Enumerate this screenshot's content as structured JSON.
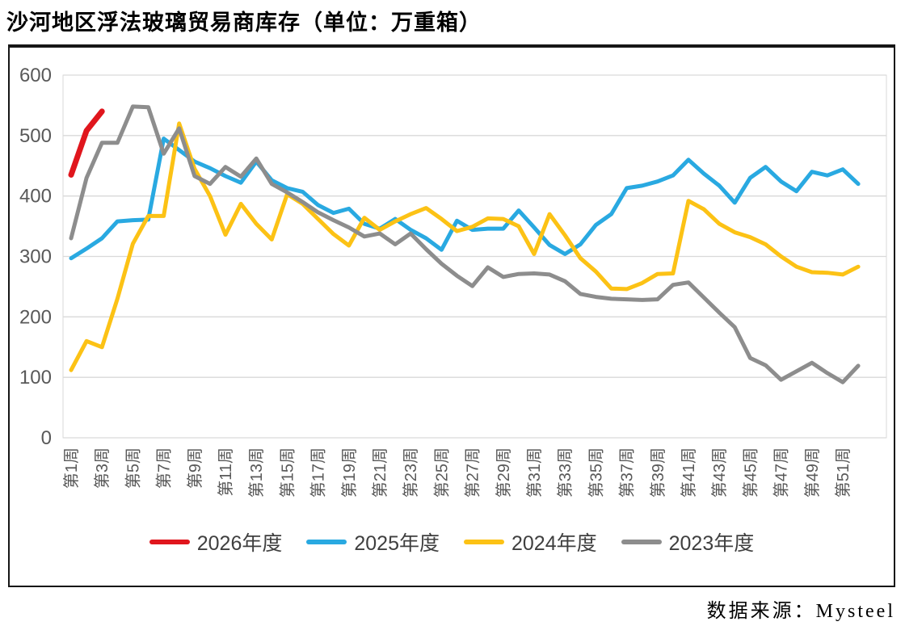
{
  "page": {
    "title": "沙河地区浮法玻璃贸易商库存（单位：万重箱）",
    "source": "数据来源：Mysteel"
  },
  "colors": {
    "gridline": "#d9d9d9",
    "plot_border": "#d9d9d9",
    "axis_text": "#595959",
    "box_border": "#161616"
  },
  "chart_data": {
    "type": "line",
    "title": "沙河地区浮法玻璃贸易商库存",
    "unit": "万重箱",
    "grid": "horizontal",
    "legend_position": "bottom",
    "weeks": 52,
    "y_axis": {
      "range": [
        0,
        600
      ],
      "ticks": [
        0,
        100,
        200,
        300,
        400,
        500,
        600
      ]
    },
    "x_axis": {
      "tick_labels": [
        "第1周",
        "第3周",
        "第5周",
        "第7周",
        "第9周",
        "第11周",
        "第13周",
        "第15周",
        "第17周",
        "第19周",
        "第21周",
        "第23周",
        "第25周",
        "第27周",
        "第29周",
        "第31周",
        "第33周",
        "第35周",
        "第37周",
        "第39周",
        "第41周",
        "第43周",
        "第45周",
        "第47周",
        "第49周",
        "第51周"
      ]
    },
    "series": [
      {
        "name": "2026年度",
        "color": "#e0161d",
        "stroke_width": 7,
        "values": [
          435,
          508,
          540
        ]
      },
      {
        "name": "2025年度",
        "color": "#29a9e1",
        "stroke_width": 5,
        "values": [
          297,
          313,
          330,
          358,
          360,
          361,
          495,
          476,
          457,
          446,
          433,
          422,
          457,
          426,
          413,
          407,
          385,
          372,
          379,
          354,
          346,
          362,
          344,
          330,
          311,
          359,
          344,
          346,
          346,
          376,
          348,
          319,
          304,
          320,
          352,
          370,
          413,
          417,
          424,
          434,
          460,
          437,
          417,
          389,
          430,
          448,
          424,
          408,
          440,
          434,
          444,
          420
        ]
      },
      {
        "name": "2024年度",
        "color": "#fcc215",
        "stroke_width": 5,
        "values": [
          112,
          160,
          150,
          230,
          321,
          367,
          367,
          520,
          445,
          400,
          336,
          387,
          354,
          328,
          403,
          387,
          362,
          337,
          318,
          364,
          344,
          358,
          370,
          380,
          362,
          342,
          349,
          363,
          362,
          350,
          304,
          370,
          335,
          297,
          275,
          247,
          246,
          256,
          271,
          272,
          392,
          378,
          354,
          340,
          332,
          320,
          300,
          283,
          274,
          273,
          270,
          283
        ]
      },
      {
        "name": "2023年度",
        "color": "#8d8d8d",
        "stroke_width": 5,
        "values": [
          330,
          430,
          488,
          488,
          548,
          547,
          470,
          512,
          433,
          420,
          448,
          432,
          462,
          420,
          406,
          390,
          373,
          360,
          348,
          333,
          338,
          320,
          338,
          312,
          288,
          268,
          251,
          282,
          266,
          271,
          272,
          270,
          259,
          238,
          233,
          230,
          229,
          228,
          229,
          253,
          257,
          232,
          207,
          183,
          132,
          120,
          96,
          110,
          124,
          107,
          92,
          119
        ]
      }
    ]
  }
}
